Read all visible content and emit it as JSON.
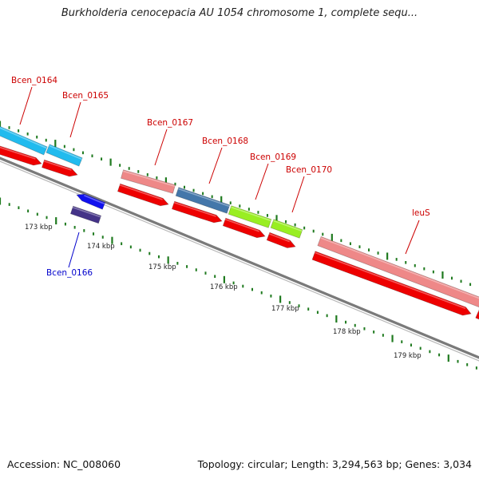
{
  "title": "Burkholderia cenocepacia AU 1054 chromosome 1, complete sequ...",
  "footer": {
    "accession_label": "Accession: NC_008060",
    "topology_label": "Topology: circular; Length: 3,294,563 bp; Genes: 3,034"
  },
  "colors": {
    "gene_label": "#cc0000",
    "reverse_gene_label": "#0000cc",
    "backbone": "#7a7a7a",
    "ticks": "#1f7a1f",
    "tick_label": "#222222",
    "cds_red": "#ee0000",
    "cds_cyan": "#22bbee",
    "cds_pink": "#ee8888",
    "cds_steel": "#4477aa",
    "cds_lime": "#99ee22",
    "cds_blue": "#1111ee",
    "cds_indigo": "#443388"
  },
  "scale_labels": [
    "173 kbp",
    "174 kbp",
    "175 kbp",
    "176 kbp",
    "177 kbp",
    "178 kbp",
    "179 kbp"
  ],
  "genes": [
    {
      "name": "Bcen_0164",
      "strand": "forward",
      "color_key": "cds_cyan"
    },
    {
      "name": "Bcen_0165",
      "strand": "forward",
      "color_key": "cds_cyan"
    },
    {
      "name": "Bcen_0166",
      "strand": "reverse",
      "color_key": "cds_indigo"
    },
    {
      "name": "Bcen_0167",
      "strand": "forward",
      "color_key": "cds_pink"
    },
    {
      "name": "Bcen_0168",
      "strand": "forward",
      "color_key": "cds_steel"
    },
    {
      "name": "Bcen_0169",
      "strand": "forward",
      "color_key": "cds_lime"
    },
    {
      "name": "Bcen_0170",
      "strand": "forward",
      "color_key": "cds_lime"
    },
    {
      "name": "leuS",
      "strand": "forward",
      "color_key": "cds_pink"
    }
  ]
}
